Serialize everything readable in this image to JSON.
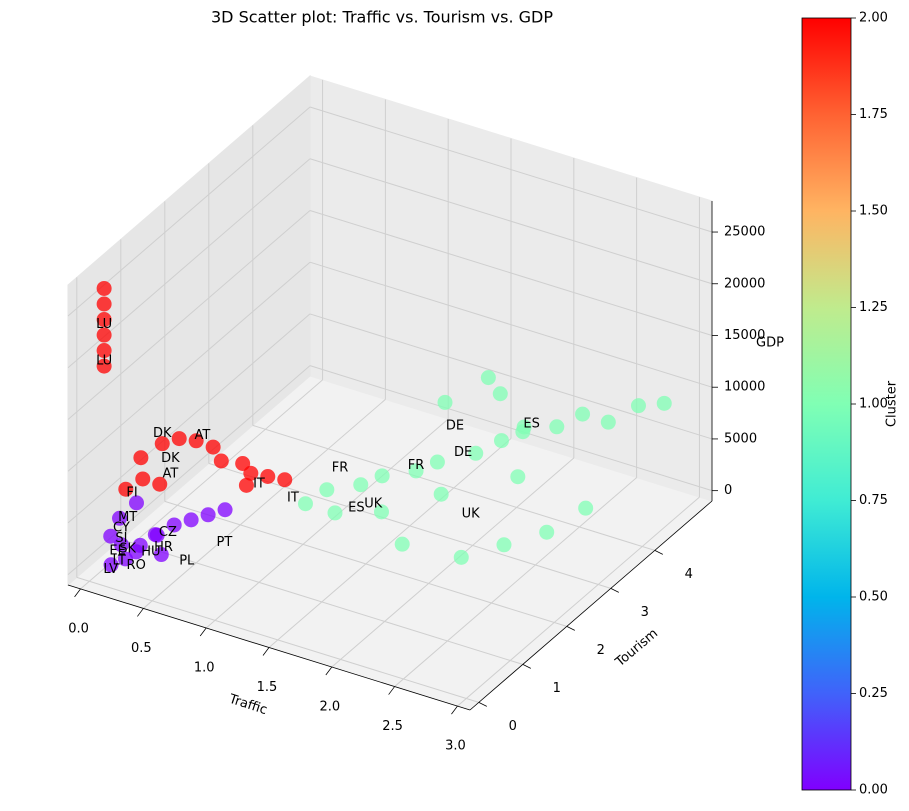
{
  "chart_data": {
    "type": "scatter3d",
    "title": "3D Scatter plot: Traffic vs. Tourism vs. GDP",
    "xlabel": "Traffic",
    "ylabel": "Tourism",
    "zlabel": "GDP",
    "clabel": "Cluster",
    "xlim": [
      -0.1,
      3.1
    ],
    "ylim": [
      -0.2,
      5.3
    ],
    "zlim": [
      -1000,
      28000
    ],
    "clim": [
      0,
      2
    ],
    "xticks": [
      {
        "value": 0,
        "label": "0.0"
      },
      {
        "value": 0.5,
        "label": "0.5"
      },
      {
        "value": 1,
        "label": "1.0"
      },
      {
        "value": 1.5,
        "label": "1.5"
      },
      {
        "value": 2,
        "label": "2.0"
      },
      {
        "value": 2.5,
        "label": "2.5"
      },
      {
        "value": 3,
        "label": "3.0"
      }
    ],
    "yticks": [
      0,
      1,
      2,
      3,
      4
    ],
    "zticks": [
      0,
      5000,
      10000,
      15000,
      20000,
      25000
    ],
    "cticks": [
      {
        "value": 0,
        "label": "0.00"
      },
      {
        "value": 0.25,
        "label": "0.25"
      },
      {
        "value": 0.5,
        "label": "0.50"
      },
      {
        "value": 0.75,
        "label": "0.75"
      },
      {
        "value": 1,
        "label": "1.00"
      },
      {
        "value": 1.25,
        "label": "1.25"
      },
      {
        "value": 1.5,
        "label": "1.50"
      },
      {
        "value": 1.75,
        "label": "1.75"
      },
      {
        "value": 2,
        "label": "2.00"
      }
    ],
    "colormap": [
      "#8000ff",
      "#4062fa",
      "#00b5eb",
      "#40ecd4",
      "#80ffb4",
      "#c0eb8d",
      "#ffb462",
      "#ff6232",
      "#ff0000"
    ],
    "grid": true,
    "points": {
      "x": [
        0.1,
        0.1,
        0.1,
        0.1,
        0.1,
        0.1,
        0.2,
        0.3,
        0.4,
        0.5,
        0.6,
        0.7,
        0.8,
        0.9,
        1.0,
        1.1,
        0.25,
        0.35,
        0.15,
        0.9,
        0.1,
        0.15,
        0.2,
        0.1,
        0.3,
        0.4,
        0.5,
        0.6,
        0.7,
        0.8,
        0.2,
        0.25,
        0.35,
        0.45,
        0.12,
        1.3,
        1.4,
        1.5,
        1.6,
        1.7,
        1.8,
        1.9,
        2.0,
        2.1,
        2.2,
        2.3,
        2.4,
        2.5,
        2.6,
        2.7,
        2.8,
        2.9,
        3.0,
        2.6,
        2.8,
        2.9,
        2.4,
        2.0,
        1.5,
        1.8,
        1.6,
        2.2
      ],
      "y": [
        0.05,
        0.05,
        0.05,
        0.05,
        0.05,
        0.05,
        0.6,
        0.8,
        0.9,
        1.0,
        1.1,
        1.0,
        1.2,
        1.1,
        1.2,
        1.3,
        0.5,
        0.6,
        0.4,
        1.0,
        0.2,
        0.3,
        0.25,
        0.4,
        0.3,
        0.4,
        0.5,
        0.6,
        0.7,
        0.8,
        0.5,
        0.35,
        0.5,
        0.35,
        0.15,
        1.2,
        1.4,
        1.3,
        1.6,
        1.8,
        1.5,
        2.0,
        2.2,
        2.0,
        2.5,
        2.8,
        3.0,
        2.6,
        3.2,
        3.5,
        3.8,
        4.2,
        4.5,
        2.0,
        2.4,
        3.0,
        1.6,
        1.4,
        3.8,
        4.2,
        4.5,
        3.6
      ],
      "z": [
        20000,
        21500,
        23000,
        24500,
        26000,
        27500,
        9500,
        10500,
        11000,
        10800,
        10200,
        9600,
        9000,
        8800,
        8500,
        8200,
        8000,
        7500,
        7000,
        8000,
        3000,
        2000,
        1000,
        4000,
        2500,
        3500,
        4500,
        5000,
        5500,
        6000,
        5500,
        1500,
        3000,
        2000,
        500,
        7000,
        8000,
        6500,
        8500,
        9000,
        7000,
        9500,
        10000,
        8000,
        10500,
        11000,
        11500,
        9000,
        12000,
        12500,
        11000,
        11500,
        11000,
        5000,
        5500,
        6000,
        4500,
        5000,
        8000,
        8500,
        8200,
        9000
      ],
      "cluster": [
        2,
        2,
        2,
        2,
        2,
        2,
        2,
        2,
        2,
        2,
        2,
        2,
        2,
        2,
        2,
        2,
        2,
        2,
        2,
        2,
        0,
        0,
        0,
        0,
        0,
        0,
        0,
        0,
        0,
        0,
        0,
        0,
        0,
        0,
        0,
        1,
        1,
        1,
        1,
        1,
        1,
        1,
        1,
        1,
        1,
        1,
        1,
        1,
        1,
        1,
        1,
        1,
        1,
        1,
        1,
        1,
        1,
        1,
        1,
        1,
        1,
        1
      ]
    },
    "annotations": [
      {
        "text": "LU",
        "x": 0.1,
        "y": 0.05,
        "z": 24000
      },
      {
        "text": "LU",
        "x": 0.1,
        "y": 0.05,
        "z": 20500
      },
      {
        "text": "DK",
        "x": 0.3,
        "y": 0.8,
        "z": 11500
      },
      {
        "text": "AT",
        "x": 0.55,
        "y": 1.0,
        "z": 11500
      },
      {
        "text": "DK",
        "x": 0.4,
        "y": 0.7,
        "z": 9800
      },
      {
        "text": "AT",
        "x": 0.4,
        "y": 0.7,
        "z": 8300
      },
      {
        "text": "FI",
        "x": 0.2,
        "y": 0.4,
        "z": 6800
      },
      {
        "text": "MT",
        "x": 0.2,
        "y": 0.3,
        "z": 4800
      },
      {
        "text": "CY",
        "x": 0.15,
        "y": 0.3,
        "z": 3600
      },
      {
        "text": "SI",
        "x": 0.15,
        "y": 0.3,
        "z": 2600
      },
      {
        "text": "SK",
        "x": 0.2,
        "y": 0.3,
        "z": 1800
      },
      {
        "text": "EE",
        "x": 0.12,
        "y": 0.3,
        "z": 1300
      },
      {
        "text": "LT",
        "x": 0.15,
        "y": 0.25,
        "z": 600
      },
      {
        "text": "LV",
        "x": 0.1,
        "y": 0.2,
        "z": -200
      },
      {
        "text": "CZ",
        "x": 0.45,
        "y": 0.5,
        "z": 3600
      },
      {
        "text": "HU",
        "x": 0.35,
        "y": 0.4,
        "z": 1700
      },
      {
        "text": "HR",
        "x": 0.45,
        "y": 0.4,
        "z": 2500
      },
      {
        "text": "PL",
        "x": 0.6,
        "y": 0.5,
        "z": 1400
      },
      {
        "text": "RO",
        "x": 0.25,
        "y": 0.35,
        "z": 200
      },
      {
        "text": "PT",
        "x": 0.9,
        "y": 0.5,
        "z": 4300
      },
      {
        "text": "IT",
        "x": 1.0,
        "y": 1.0,
        "z": 8500
      },
      {
        "text": "IT",
        "x": 1.2,
        "y": 1.2,
        "z": 7200
      },
      {
        "text": "FR",
        "x": 1.4,
        "y": 1.7,
        "z": 9000
      },
      {
        "text": "FR",
        "x": 1.9,
        "y": 2.0,
        "z": 10000
      },
      {
        "text": "ES",
        "x": 1.6,
        "y": 1.5,
        "z": 6600
      },
      {
        "text": "ES",
        "x": 2.4,
        "y": 3.2,
        "z": 11500
      },
      {
        "text": "UK",
        "x": 1.7,
        "y": 1.6,
        "z": 7000
      },
      {
        "text": "UK",
        "x": 2.3,
        "y": 2.1,
        "z": 6500
      },
      {
        "text": "DE",
        "x": 2.0,
        "y": 2.6,
        "z": 12000
      },
      {
        "text": "DE",
        "x": 2.1,
        "y": 2.5,
        "z": 10200
      }
    ]
  }
}
